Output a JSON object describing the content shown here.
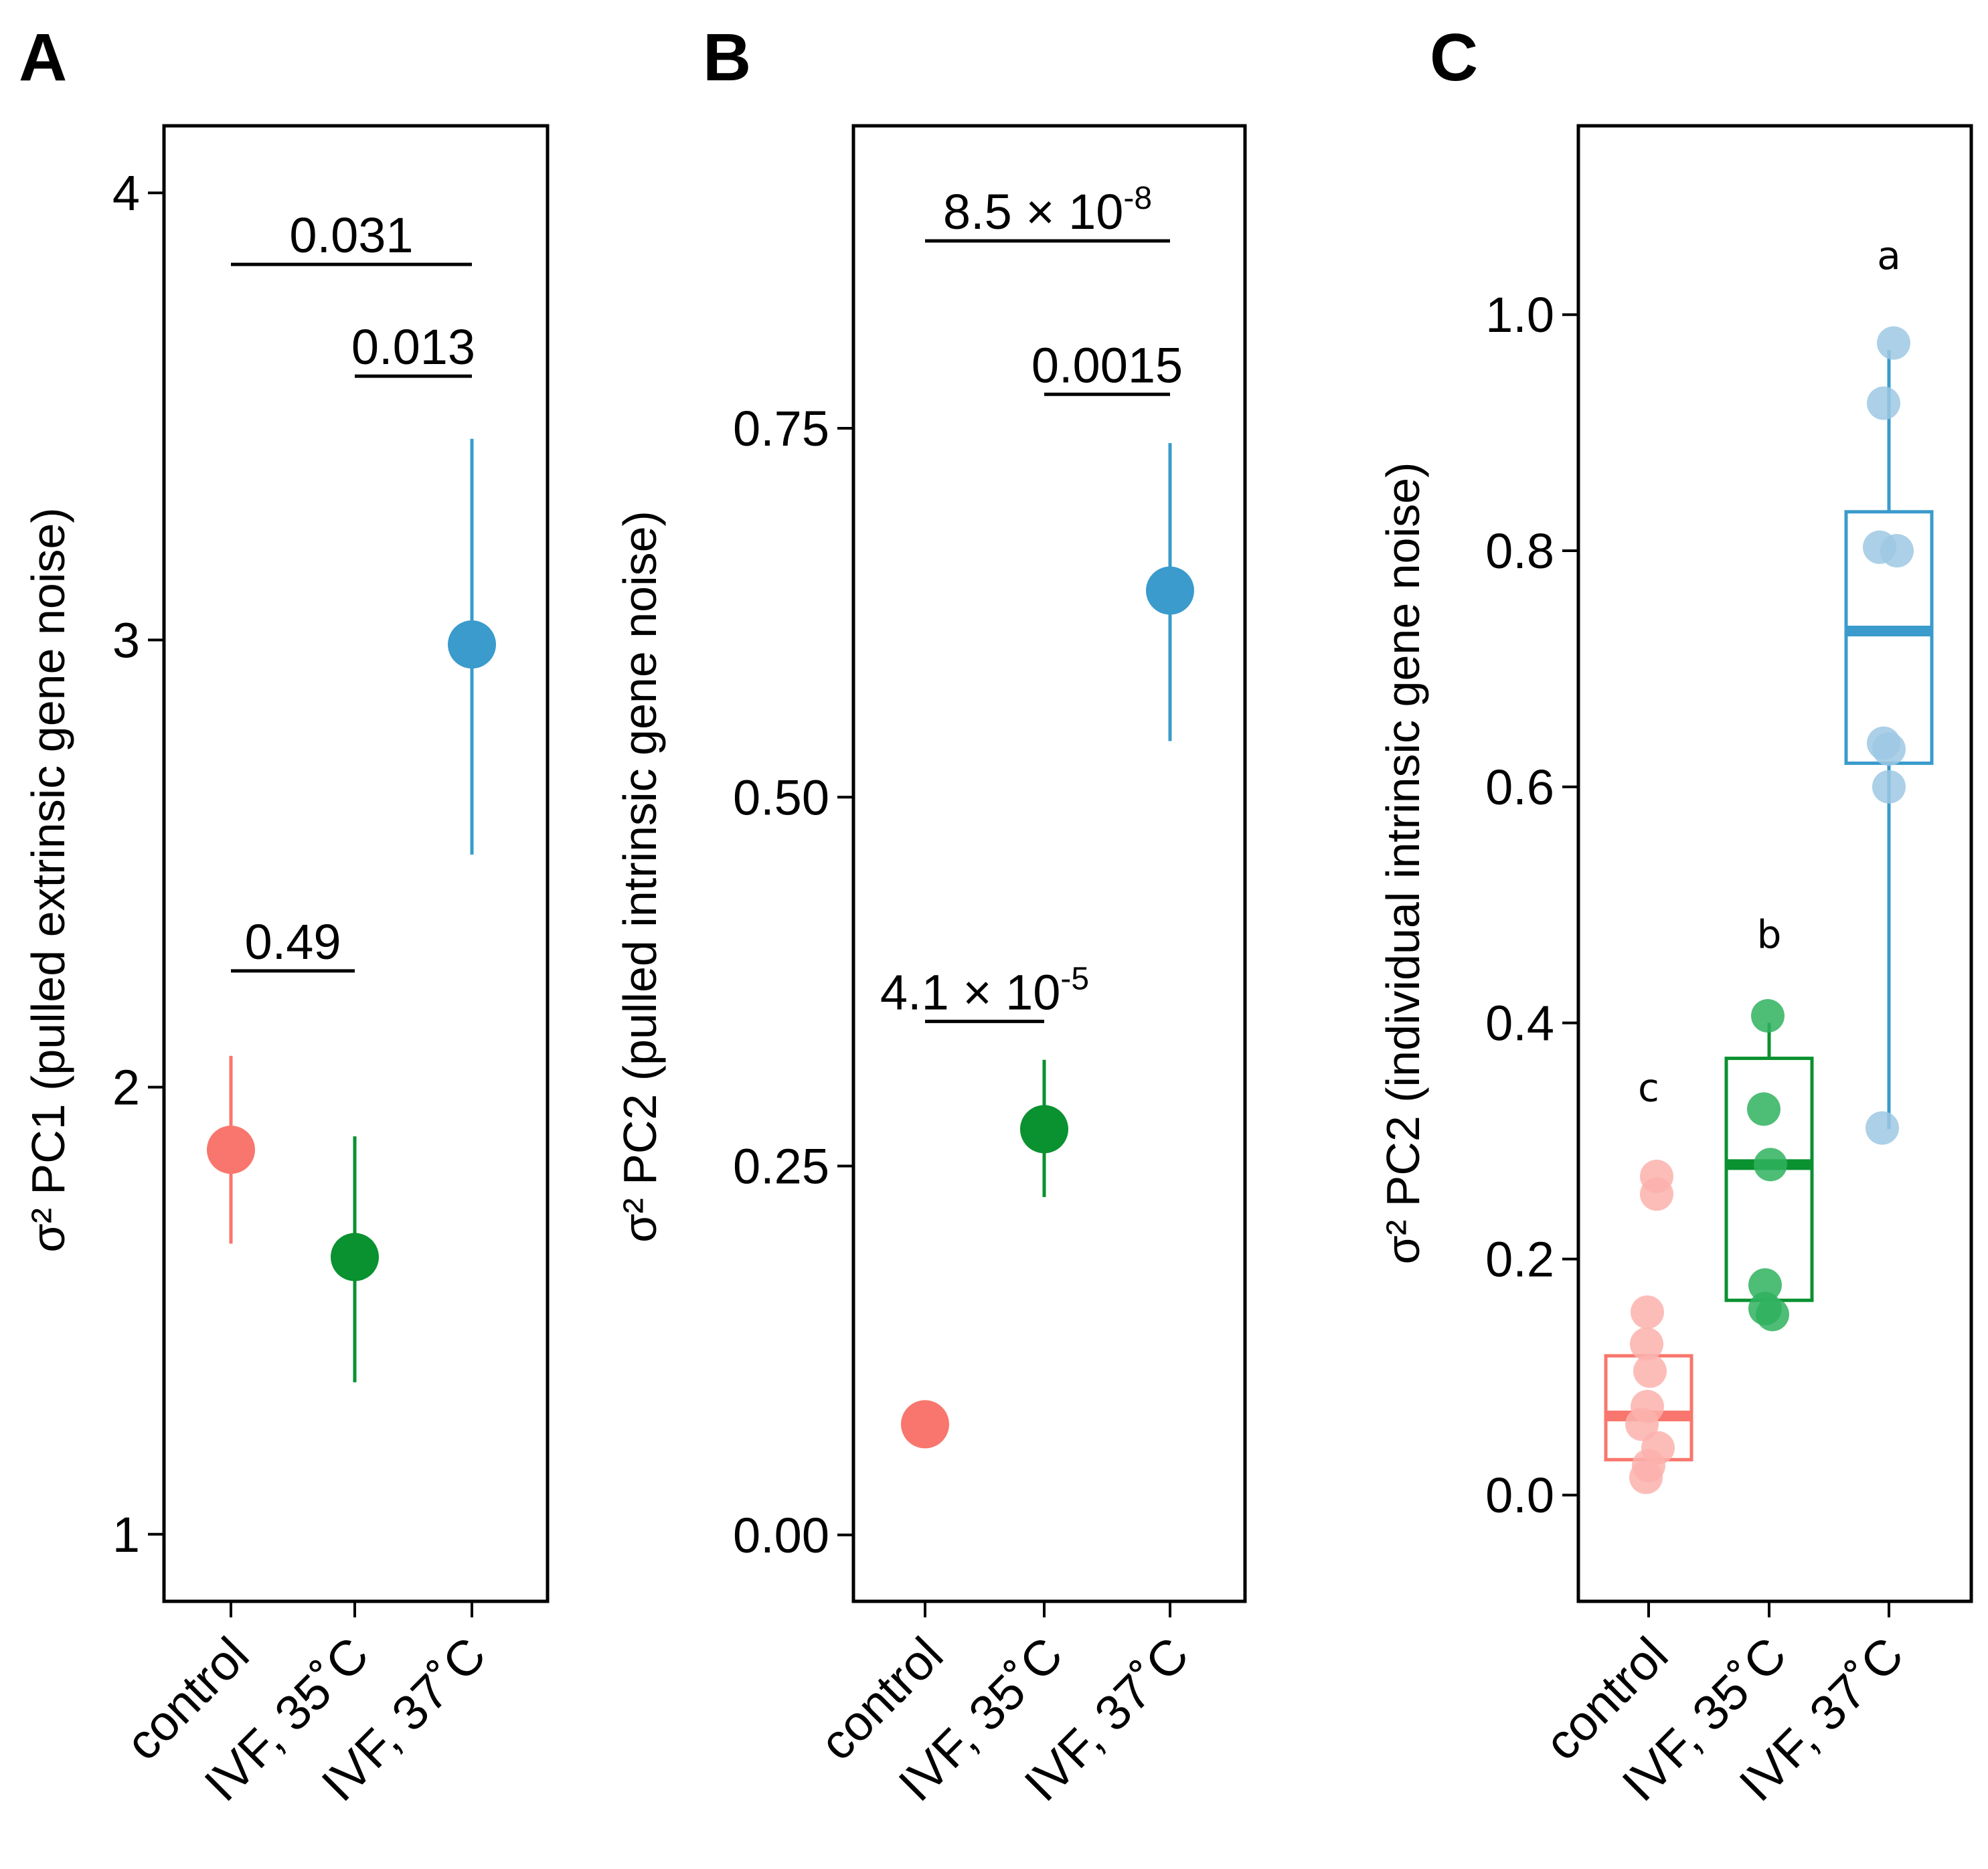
{
  "colors": {
    "control": "#f8766d",
    "ivf35": "#0a9130",
    "ivf37": "#3a9bcc",
    "control_light": "#fbb1ad",
    "ivf35_light": "#2fb25e",
    "ivf37_light": "#9cc8e3",
    "axis": "#000000"
  },
  "chart_data": [
    {
      "panel": "A",
      "type": "scatter",
      "title": "",
      "ylabel": "σ² PC1 (pulled extrinsic gene noise)",
      "categories": [
        "control",
        "IVF, 35˚C",
        "IVF, 37˚C"
      ],
      "ylim": [
        0.85,
        4.15
      ],
      "yticks": [
        1,
        2,
        3,
        4
      ],
      "ytick_labels": [
        "1",
        "2",
        "3",
        "4"
      ],
      "points": [
        {
          "category": "control",
          "value": 1.86,
          "low": 1.65,
          "high": 2.07
        },
        {
          "category": "IVF, 35˚C",
          "value": 1.62,
          "low": 1.34,
          "high": 1.89
        },
        {
          "category": "IVF, 37˚C",
          "value": 2.99,
          "low": 2.52,
          "high": 3.45
        }
      ],
      "comparisons": [
        {
          "from": "control",
          "to": "IVF, 37˚C",
          "y": 3.84,
          "label": "0.031",
          "exp": ""
        },
        {
          "from": "IVF, 35˚C",
          "to": "IVF, 37˚C",
          "y": 3.59,
          "label": "0.013",
          "exp": ""
        },
        {
          "from": "control",
          "to": "IVF, 35˚C",
          "y": 2.26,
          "label": "0.49",
          "exp": ""
        }
      ]
    },
    {
      "panel": "B",
      "type": "scatter",
      "title": "",
      "ylabel": "σ² PC2 (pulled intrinsic gene noise)",
      "categories": [
        "control",
        "IVF, 35˚C",
        "IVF, 37˚C"
      ],
      "ylim": [
        -0.045,
        0.955
      ],
      "yticks": [
        0,
        0.25,
        0.5,
        0.75
      ],
      "ytick_labels": [
        "0.00",
        "0.25",
        "0.50",
        "0.75"
      ],
      "points": [
        {
          "category": "control",
          "value": 0.075,
          "low": 0.075,
          "high": 0.075
        },
        {
          "category": "IVF, 35˚C",
          "value": 0.275,
          "low": 0.229,
          "high": 0.322
        },
        {
          "category": "IVF, 37˚C",
          "value": 0.64,
          "low": 0.538,
          "high": 0.74
        }
      ],
      "comparisons": [
        {
          "from": "control",
          "to": "IVF, 37˚C",
          "y": 0.877,
          "label": "8.5 × 10",
          "exp": "-8"
        },
        {
          "from": "IVF, 35˚C",
          "to": "IVF, 37˚C",
          "y": 0.773,
          "label": "0.0015",
          "exp": ""
        },
        {
          "from": "control",
          "to": "IVF, 35˚C",
          "y": 0.348,
          "label": "4.1 × 10",
          "exp": "-5"
        }
      ]
    },
    {
      "panel": "C",
      "type": "box",
      "title": "",
      "ylabel": "σ² PC2 (individual intrinsic gene noise)",
      "categories": [
        "control",
        "IVF, 35˚C",
        "IVF, 37˚C"
      ],
      "ylim": [
        -0.09,
        1.16
      ],
      "yticks": [
        0,
        0.2,
        0.4,
        0.6,
        0.8,
        1.0
      ],
      "ytick_labels": [
        "0.0",
        "0.2",
        "0.4",
        "0.6",
        "0.8",
        "1.0"
      ],
      "groups": [
        {
          "category": "control",
          "q1": 0.03,
          "median": 0.067,
          "q3": 0.118,
          "whisker_low": 0.03,
          "whisker_high": 0.118,
          "values": [
            0.27,
            0.255,
            0.155,
            0.128,
            0.105,
            0.075,
            0.06,
            0.04,
            0.025,
            0.015
          ],
          "outliers": [],
          "letter": "c",
          "letter_y": 0.345
        },
        {
          "category": "IVF, 35˚C",
          "q1": 0.165,
          "median": 0.28,
          "q3": 0.37,
          "whisker_low": 0.165,
          "whisker_high": 0.4,
          "values": [
            0.406,
            0.327,
            0.28,
            0.178,
            0.158,
            0.153
          ],
          "outliers": [],
          "letter": "b",
          "letter_y": 0.475
        },
        {
          "category": "IVF, 37˚C",
          "q1": 0.62,
          "median": 0.732,
          "q3": 0.833,
          "whisker_low": 0.31,
          "whisker_high": 0.97,
          "values": [
            0.976,
            0.925,
            0.803,
            0.8,
            0.637,
            0.632,
            0.6,
            0.311
          ],
          "outliers": [],
          "letter": "a",
          "letter_y": 1.05
        }
      ]
    }
  ]
}
